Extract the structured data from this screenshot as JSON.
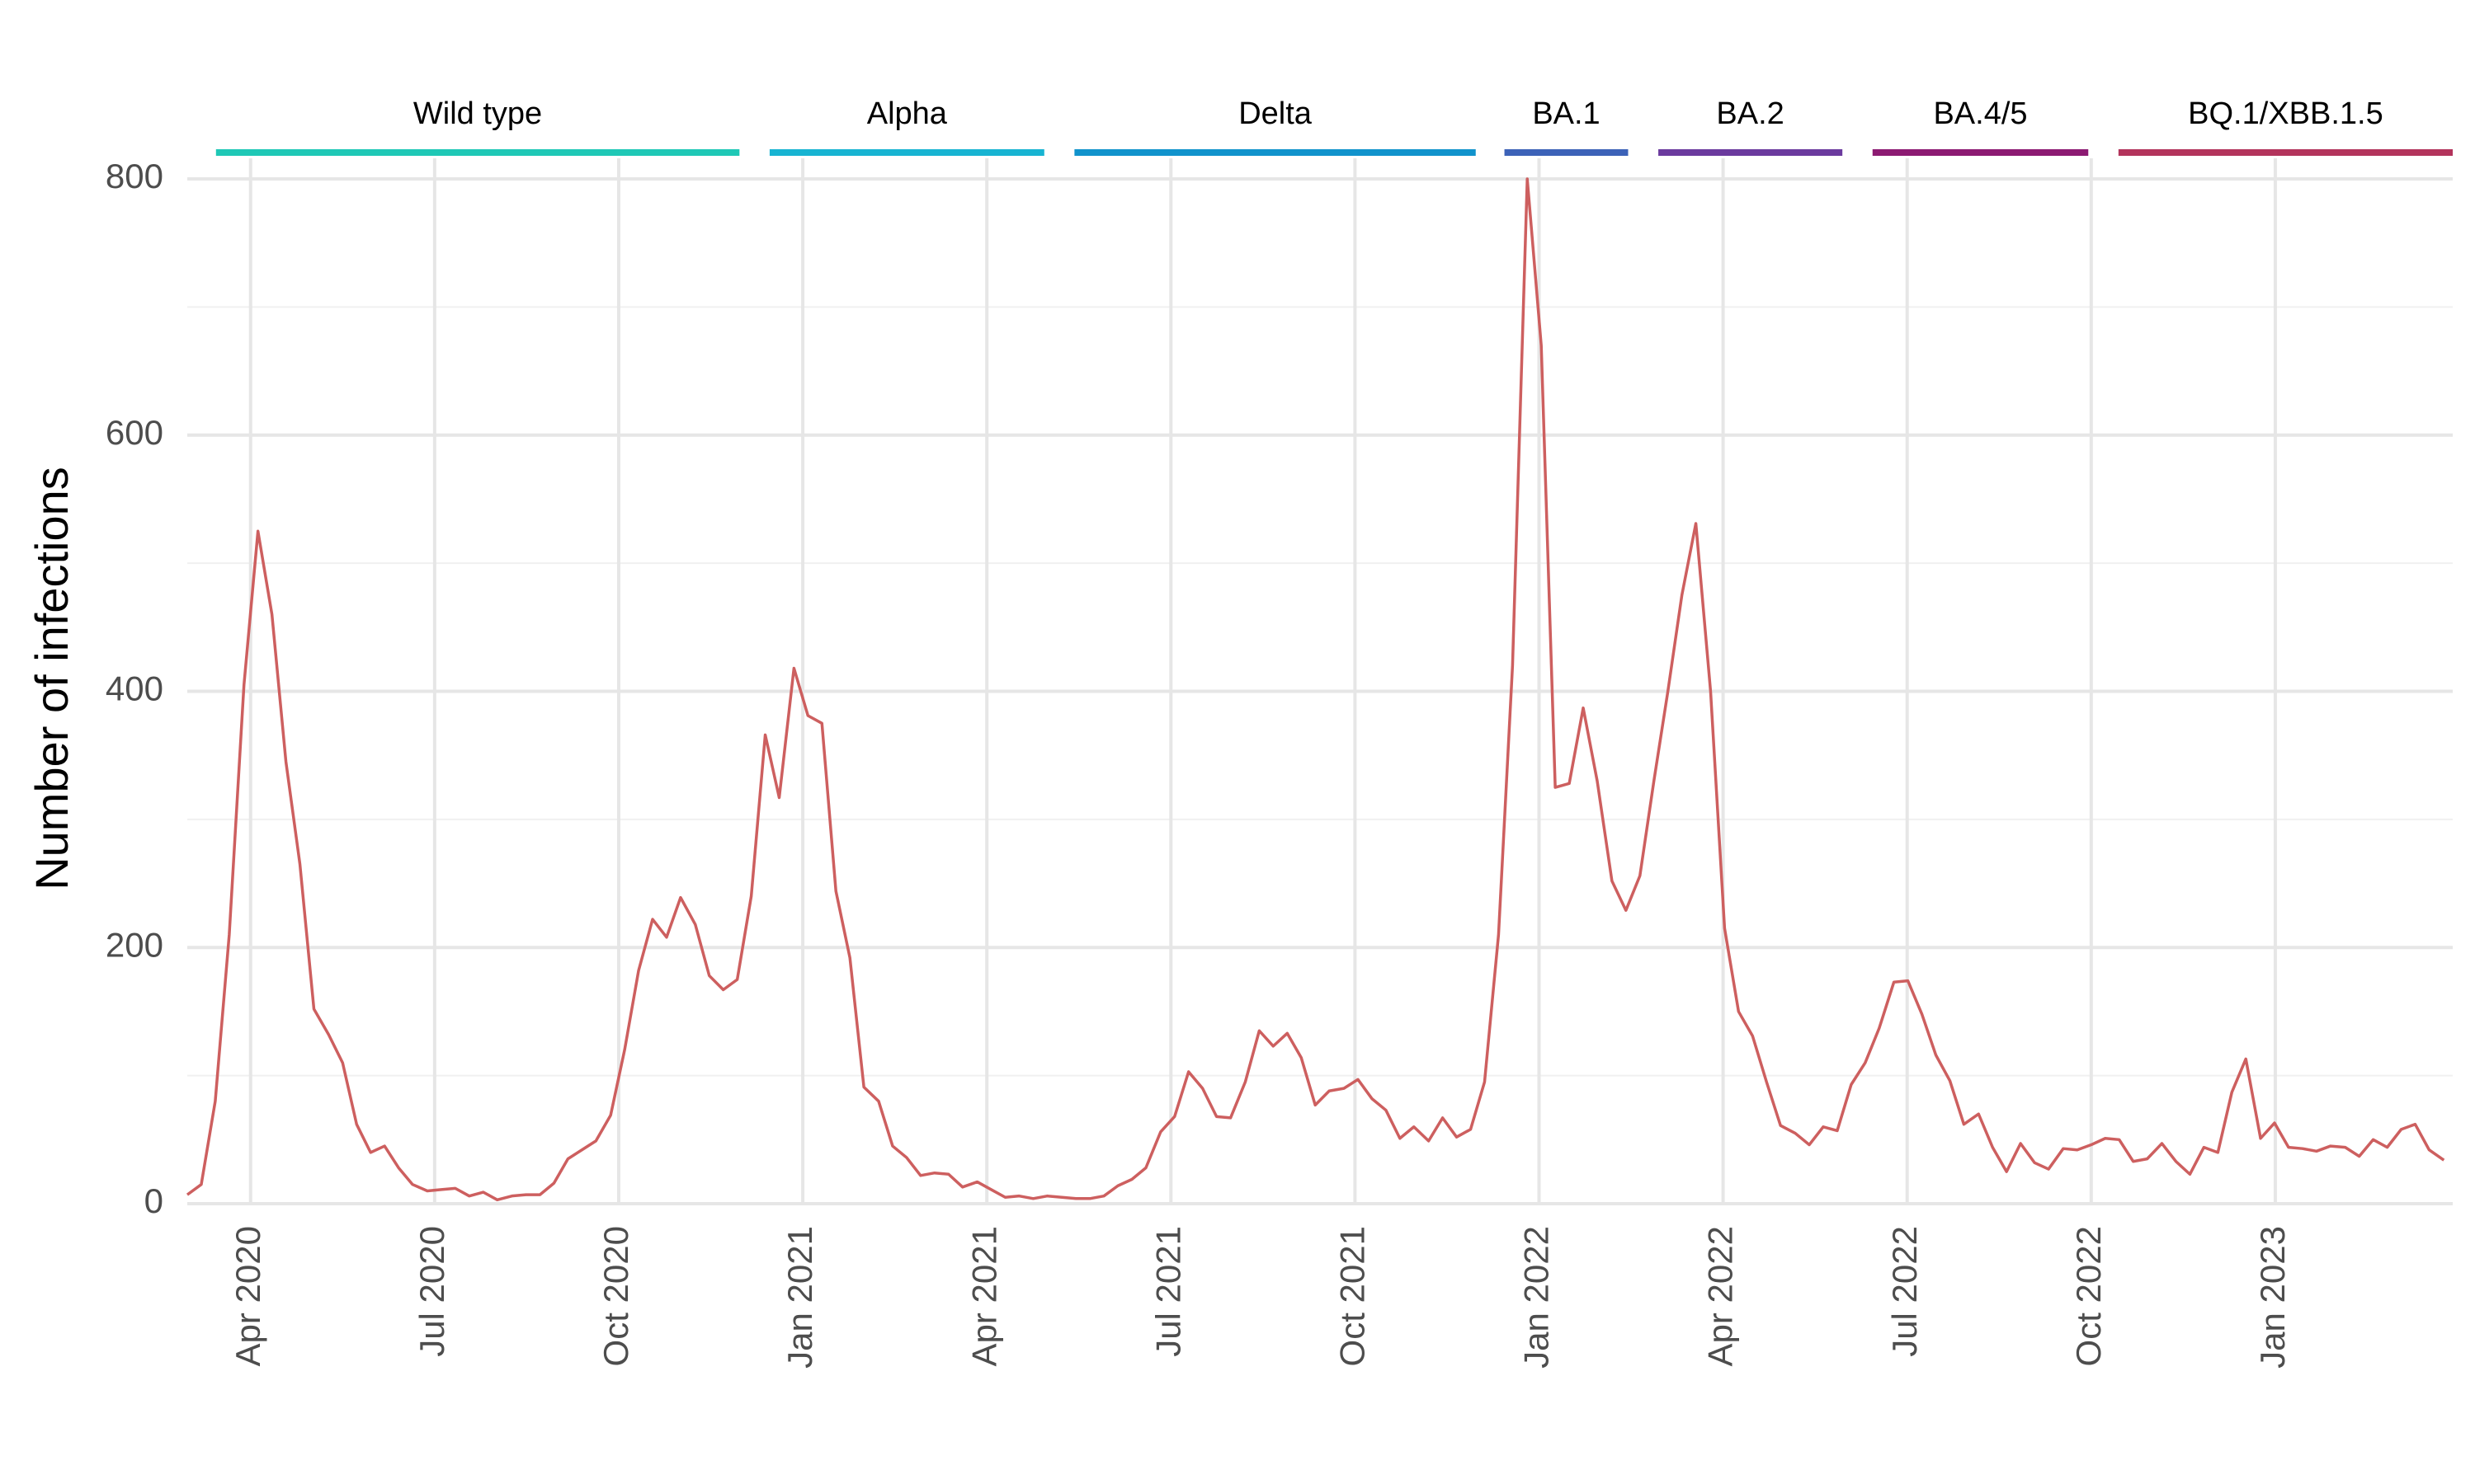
{
  "chart_data": {
    "type": "line",
    "y_label": "Number of infections",
    "xlim": [
      2020.164,
      2023.241
    ],
    "xticks": [
      {
        "value": 2020.25,
        "label": "Apr 2020"
      },
      {
        "value": 2020.5,
        "label": "Jul 2020"
      },
      {
        "value": 2020.75,
        "label": "Oct 2020"
      },
      {
        "value": 2021.0,
        "label": "Jan 2021"
      },
      {
        "value": 2021.25,
        "label": "Apr 2021"
      },
      {
        "value": 2021.5,
        "label": "Jul 2021"
      },
      {
        "value": 2021.75,
        "label": "Oct 2021"
      },
      {
        "value": 2022.0,
        "label": "Jan 2022"
      },
      {
        "value": 2022.25,
        "label": "Apr 2022"
      },
      {
        "value": 2022.5,
        "label": "Jul 2022"
      },
      {
        "value": 2022.75,
        "label": "Oct 2022"
      },
      {
        "value": 2023.0,
        "label": "Jan 2023"
      }
    ],
    "ylim": [
      0,
      800
    ],
    "yticks": [
      0,
      200,
      400,
      600,
      800
    ],
    "minor_yticks": [
      100,
      300,
      500,
      700
    ],
    "grid": true,
    "x": [
      2020.164,
      2020.183,
      2020.202,
      2020.221,
      2020.241,
      2020.26,
      2020.279,
      2020.298,
      2020.317,
      2020.336,
      2020.356,
      2020.375,
      2020.394,
      2020.413,
      2020.432,
      2020.451,
      2020.47,
      2020.49,
      2020.509,
      2020.528,
      2020.547,
      2020.566,
      2020.585,
      2020.605,
      2020.624,
      2020.643,
      2020.662,
      2020.681,
      2020.7,
      2020.719,
      2020.739,
      2020.758,
      2020.777,
      2020.796,
      2020.815,
      2020.834,
      2020.854,
      2020.873,
      2020.892,
      2020.911,
      2020.93,
      2020.949,
      2020.968,
      2020.988,
      2021.007,
      2021.026,
      2021.045,
      2021.064,
      2021.083,
      2021.103,
      2021.122,
      2021.141,
      2021.16,
      2021.179,
      2021.198,
      2021.217,
      2021.237,
      2021.256,
      2021.275,
      2021.294,
      2021.313,
      2021.332,
      2021.352,
      2021.371,
      2021.39,
      2021.409,
      2021.428,
      2021.447,
      2021.466,
      2021.486,
      2021.505,
      2021.524,
      2021.543,
      2021.562,
      2021.581,
      2021.601,
      2021.62,
      2021.639,
      2021.658,
      2021.677,
      2021.696,
      2021.715,
      2021.735,
      2021.754,
      2021.773,
      2021.792,
      2021.811,
      2021.83,
      2021.85,
      2021.869,
      2021.888,
      2021.907,
      2021.926,
      2021.945,
      2021.964,
      2021.984,
      2022.003,
      2022.022,
      2022.041,
      2022.06,
      2022.079,
      2022.099,
      2022.118,
      2022.137,
      2022.156,
      2022.175,
      2022.194,
      2022.213,
      2022.233,
      2022.252,
      2022.271,
      2022.29,
      2022.309,
      2022.328,
      2022.348,
      2022.367,
      2022.386,
      2022.405,
      2022.424,
      2022.443,
      2022.462,
      2022.482,
      2022.501,
      2022.52,
      2022.539,
      2022.558,
      2022.577,
      2022.597,
      2022.616,
      2022.635,
      2022.654,
      2022.673,
      2022.692,
      2022.712,
      2022.731,
      2022.75,
      2022.769,
      2022.788,
      2022.807,
      2022.826,
      2022.846,
      2022.865,
      2022.884,
      2022.903,
      2022.922,
      2022.941,
      2022.96,
      2022.98,
      2022.999,
      2023.018,
      2023.037,
      2023.056,
      2023.075,
      2023.095,
      2023.114,
      2023.133,
      2023.152,
      2023.171,
      2023.19,
      2023.209,
      2023.229
    ],
    "series": [
      {
        "name": "Infections",
        "color": "#cd5f5f",
        "values": [
          7,
          15,
          80,
          210,
          405,
          525,
          460,
          345,
          265,
          152,
          132,
          110,
          62,
          40,
          45,
          28,
          15,
          10,
          11,
          12,
          6,
          9,
          3,
          6,
          7,
          7,
          16,
          35,
          42,
          49,
          69,
          120,
          182,
          222,
          208,
          239,
          218,
          178,
          167,
          175,
          240,
          366,
          317,
          418,
          381,
          375,
          244,
          192,
          91,
          80,
          45,
          36,
          22,
          24,
          23,
          13,
          17,
          11,
          5,
          6,
          4,
          6,
          5,
          4,
          4,
          6,
          14,
          19,
          28,
          56,
          68,
          103,
          90,
          68,
          67,
          95,
          135,
          123,
          133,
          114,
          77,
          88,
          90,
          97,
          82,
          73,
          51,
          60,
          49,
          67,
          52,
          58,
          95,
          210,
          420,
          800,
          670,
          325,
          328,
          387,
          330,
          252,
          229,
          256,
          330,
          400,
          475,
          531,
          400,
          215,
          150,
          131,
          95,
          61,
          55,
          46,
          60,
          57,
          93,
          110,
          137,
          173,
          174,
          148,
          116,
          96,
          62,
          70,
          44,
          25,
          47,
          32,
          27,
          43,
          42,
          46,
          51,
          50,
          33,
          35,
          47,
          33,
          23,
          44,
          40,
          87,
          113,
          51,
          63,
          44,
          43,
          41,
          45,
          44,
          37,
          50,
          44,
          58,
          62,
          42,
          34
        ]
      }
    ],
    "variants": [
      {
        "name": "Wild type",
        "color": "#1fc8b6",
        "start": 2020.203,
        "end": 2020.914
      },
      {
        "name": "Alpha",
        "color": "#17b4d2",
        "start": 2020.955,
        "end": 2021.328
      },
      {
        "name": "Delta",
        "color": "#1193cc",
        "start": 2021.369,
        "end": 2021.914
      },
      {
        "name": "BA.1",
        "color": "#3c62b8",
        "start": 2021.953,
        "end": 2022.121
      },
      {
        "name": "BA.2",
        "color": "#6b3a9e",
        "start": 2022.162,
        "end": 2022.412
      },
      {
        "name": "BA.4/5",
        "color": "#8c1a72",
        "start": 2022.453,
        "end": 2022.746
      },
      {
        "name": "BQ.1/XBB.1.5",
        "color": "#b3345c",
        "start": 2022.787,
        "end": 2023.241
      }
    ]
  }
}
